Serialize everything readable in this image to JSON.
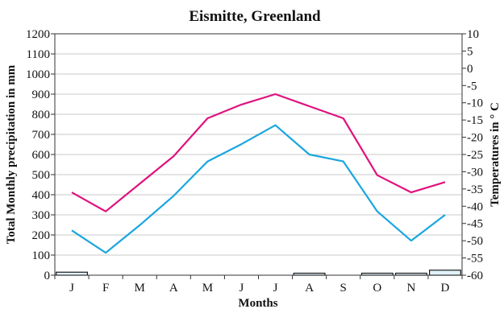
{
  "chart_data": {
    "type": "bar+line",
    "title": "Eismitte, Greenland",
    "xlabel": "Months",
    "ylabel_left": "Total Monthly precipitation in mm",
    "ylabel_right": "Temperatures in ° C",
    "categories": [
      "J",
      "F",
      "M",
      "A",
      "M",
      "J",
      "J",
      "A",
      "S",
      "O",
      "N",
      "D"
    ],
    "y_left": {
      "min": 0,
      "max": 1200,
      "step": 100
    },
    "y_right": {
      "min": -60,
      "max": 10,
      "step": 5
    },
    "grid": true,
    "bars": {
      "axis": "left",
      "unit": "mm",
      "values": [
        15,
        0,
        0,
        0,
        0,
        0,
        0,
        10,
        0,
        10,
        10,
        25
      ],
      "fill": "#dff2fb",
      "stroke": "#1a1a1a"
    },
    "series": [
      {
        "axis": "right",
        "values": [
          -36,
          -41.5,
          -33.5,
          -25.5,
          -14.5,
          -10.5,
          -7.5,
          -11,
          -14.5,
          -31,
          -36,
          -33
        ],
        "color": "#e0127e"
      },
      {
        "axis": "right",
        "values": [
          -47,
          -53.5,
          -45.5,
          -37,
          -27,
          -22,
          -16.5,
          -25,
          -27,
          -41.5,
          -50,
          -42.5
        ],
        "color": "#1aa6e0"
      }
    ]
  }
}
